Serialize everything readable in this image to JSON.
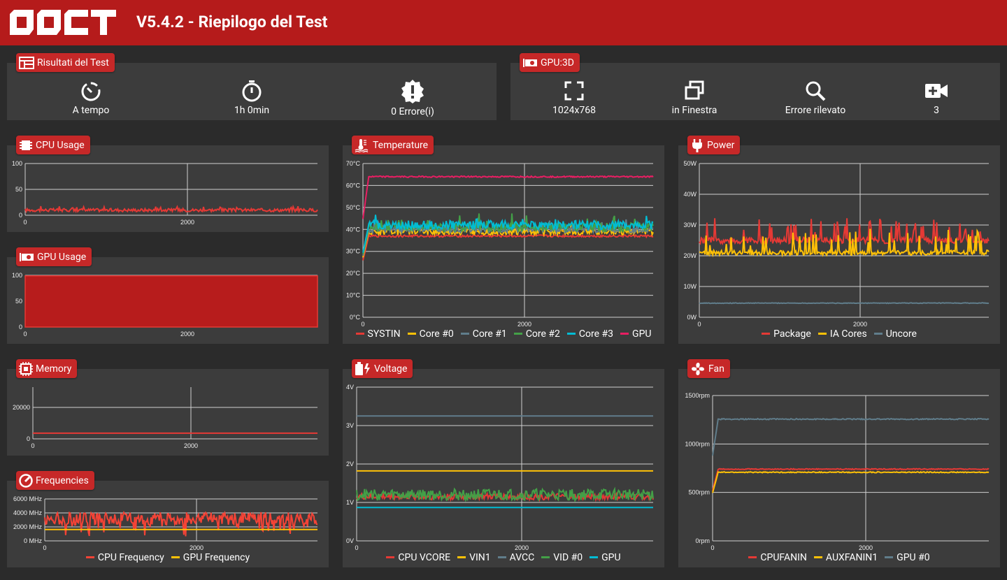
{
  "header": {
    "logo_text": "OCCT",
    "title": "V5.4.2 - Riepilogo del Test"
  },
  "colors": {
    "topbar": "#b51b1b",
    "tab": "#c62828",
    "panel": "#3c3c3c",
    "background": "#2b2b2b"
  },
  "test_results": {
    "tab_label": "Risultati del Test",
    "items": [
      {
        "icon": "timer-mode-icon",
        "label": "A tempo"
      },
      {
        "icon": "stopwatch-icon",
        "label": "1h 0min"
      },
      {
        "icon": "error-badge-icon",
        "label": "0 Errore(i)"
      }
    ]
  },
  "gpu3d": {
    "tab_label": "GPU:3D",
    "items": [
      {
        "icon": "fullscreen-icon",
        "label": "1024x768"
      },
      {
        "icon": "window-icon",
        "label": "in Finestra"
      },
      {
        "icon": "magnify-icon",
        "label": "Errore rilevato"
      },
      {
        "icon": "video-plus-icon",
        "label": "3"
      }
    ]
  },
  "charts": {
    "cpu_usage": {
      "tab_label": "CPU Usage",
      "icon": "cpu-chip-icon",
      "type": "line",
      "y_ticks": [
        "100",
        "50",
        "0"
      ],
      "y_max": 100,
      "x_ticks": [
        "0",
        "2000"
      ],
      "x_max": 3600,
      "series": [
        {
          "name": "CPU Usage",
          "color": "#e53935",
          "base": 10,
          "noise": 3,
          "spikes": 15,
          "spike_amp": 8
        }
      ]
    },
    "gpu_usage": {
      "tab_label": "GPU Usage",
      "icon": "gpu-card-icon",
      "type": "area",
      "y_ticks": [
        "100",
        "50",
        "0"
      ],
      "y_max": 100,
      "x_ticks": [
        "0",
        "2000"
      ],
      "x_max": 3600,
      "series": [
        {
          "name": "GPU Usage",
          "color": "#b71c1c",
          "base": 99,
          "noise": 0,
          "spikes": 0,
          "spike_amp": 0
        }
      ]
    },
    "memory": {
      "tab_label": "Memory",
      "icon": "memory-chip-icon",
      "type": "line",
      "y_ticks": [
        "20000",
        "0"
      ],
      "y_max": 32000,
      "x_ticks": [
        "0",
        "2000"
      ],
      "x_max": 3600,
      "series": [
        {
          "name": "Memory",
          "color": "#e53935",
          "base": 3500,
          "noise": 0,
          "spikes": 0,
          "spike_amp": 0
        }
      ]
    },
    "frequencies": {
      "tab_label": "Frequencies",
      "icon": "speedometer-icon",
      "type": "line",
      "y_ticks": [
        "6000 MHz",
        "4000 MHz",
        "2000 MHz",
        "0 MHz"
      ],
      "y_max": 6000,
      "x_ticks": [
        "0",
        "2000"
      ],
      "x_max": 3600,
      "series": [
        {
          "name": "CPU Frequency",
          "color": "#f44336",
          "base": 3200,
          "noise": 900,
          "spikes": 40,
          "spike_amp": -2000
        },
        {
          "name": "GPU Frequency",
          "color": "#ffc107",
          "base": 1620,
          "noise": 0,
          "spikes": 0,
          "spike_amp": 0
        }
      ]
    },
    "temperature": {
      "tab_label": "Temperature",
      "icon": "thermometer-icon",
      "type": "line",
      "y_ticks": [
        "70°C",
        "60°C",
        "50°C",
        "40°C",
        "30°C",
        "20°C",
        "10°C",
        "0°C"
      ],
      "y_max": 70,
      "x_ticks": [
        "0",
        "2000"
      ],
      "x_max": 3600,
      "series": [
        {
          "name": "SYSTIN",
          "color": "#e53935",
          "base": 37,
          "noise": 0.5,
          "spikes": 0,
          "spike_amp": 0
        },
        {
          "name": "Core #0",
          "color": "#ffc107",
          "base": 39,
          "noise": 1.5,
          "spikes": 10,
          "spike_amp": 4
        },
        {
          "name": "Core #1",
          "color": "#607d8b",
          "base": 40,
          "noise": 1.5,
          "spikes": 10,
          "spike_amp": 4
        },
        {
          "name": "Core #2",
          "color": "#43a047",
          "base": 41,
          "noise": 2,
          "spikes": 20,
          "spike_amp": 6
        },
        {
          "name": "Core #3",
          "color": "#00bcd4",
          "base": 42,
          "noise": 2,
          "spikes": 10,
          "spike_amp": 4
        },
        {
          "name": "GPU",
          "color": "#e91e63",
          "base": 64,
          "noise": 0.3,
          "spikes": 0,
          "spike_amp": 0
        }
      ]
    },
    "voltage": {
      "tab_label": "Voltage",
      "icon": "battery-bolt-icon",
      "type": "line",
      "y_ticks": [
        "4V",
        "3V",
        "2V",
        "1V",
        "0V"
      ],
      "y_max": 4,
      "x_ticks": [
        "0",
        "2000"
      ],
      "x_max": 3600,
      "series": [
        {
          "name": "CPU VCORE",
          "color": "#e53935",
          "base": 1.15,
          "noise": 0.08,
          "spikes": 0,
          "spike_amp": 0
        },
        {
          "name": "VIN1",
          "color": "#ffc107",
          "base": 1.82,
          "noise": 0,
          "spikes": 0,
          "spike_amp": 0
        },
        {
          "name": "AVCC",
          "color": "#607d8b",
          "base": 3.25,
          "noise": 0,
          "spikes": 0,
          "spike_amp": 0
        },
        {
          "name": "VID #0",
          "color": "#43a047",
          "base": 1.2,
          "noise": 0.15,
          "spikes": 0,
          "spike_amp": 0
        },
        {
          "name": "GPU",
          "color": "#00bcd4",
          "base": 0.87,
          "noise": 0,
          "spikes": 0,
          "spike_amp": 0
        }
      ]
    },
    "power": {
      "tab_label": "Power",
      "icon": "power-plug-icon",
      "type": "line",
      "y_ticks": [
        "50W",
        "40W",
        "30W",
        "20W",
        "10W",
        "0W"
      ],
      "y_max": 50,
      "x_ticks": [
        "0",
        "2000"
      ],
      "x_max": 3600,
      "series": [
        {
          "name": "Package",
          "color": "#e53935",
          "base": 25,
          "noise": 1,
          "spikes": 45,
          "spike_amp": 7
        },
        {
          "name": "IA Cores",
          "color": "#ffc107",
          "base": 21,
          "noise": 0.8,
          "spikes": 45,
          "spike_amp": 7
        },
        {
          "name": "Uncore",
          "color": "#607d8b",
          "base": 4.6,
          "noise": 0.1,
          "spikes": 0,
          "spike_amp": 0
        }
      ]
    },
    "fan": {
      "tab_label": "Fan",
      "icon": "fan-icon",
      "type": "line",
      "y_ticks": [
        "1500rpm",
        "1000rpm",
        "500rpm",
        "0rpm"
      ],
      "y_max": 1600,
      "x_ticks": [
        "0",
        "2000"
      ],
      "x_max": 3600,
      "series": [
        {
          "name": "CPUFANIN",
          "color": "#e53935",
          "base": 790,
          "noise": 5,
          "spikes": 0,
          "spike_amp": 0
        },
        {
          "name": "AUXFANIN1",
          "color": "#ffc107",
          "base": 755,
          "noise": 5,
          "spikes": 0,
          "spike_amp": 0
        },
        {
          "name": "GPU #0",
          "color": "#607d8b",
          "base": 1340,
          "noise": 6,
          "spikes": 0,
          "spike_amp": 0
        }
      ]
    }
  }
}
